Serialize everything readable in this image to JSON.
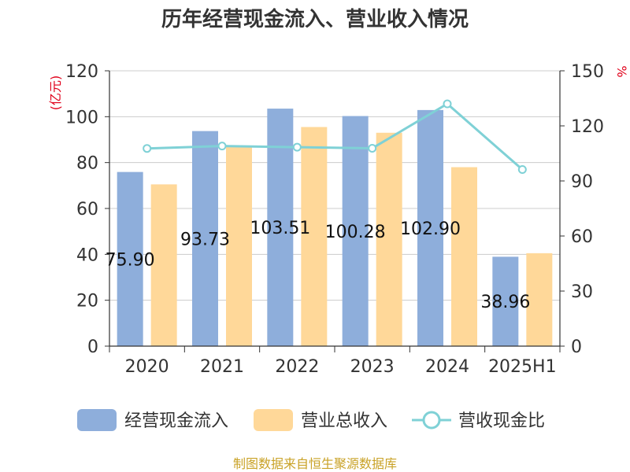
{
  "chart_data": {
    "type": "bar",
    "title": "历年经营现金流入、营业收入情况",
    "categories": [
      "2020",
      "2021",
      "2022",
      "2023",
      "2024",
      "2025H1"
    ],
    "series": [
      {
        "name": "经营现金流入",
        "kind": "bar",
        "axis": "left",
        "color": "#8eaedb",
        "values": [
          75.9,
          93.73,
          103.51,
          100.28,
          102.9,
          38.96
        ],
        "labels": [
          "75.90",
          "93.73",
          "103.51",
          "100.28",
          "102.90",
          "38.96"
        ]
      },
      {
        "name": "营业总收入",
        "kind": "bar",
        "axis": "left",
        "color": "#ffd899",
        "values": [
          70.5,
          87.0,
          95.5,
          93.0,
          78.0,
          40.5
        ]
      },
      {
        "name": "营收现金比",
        "kind": "line",
        "axis": "right",
        "color": "#7fd1d6",
        "values": [
          107.7,
          109.0,
          108.4,
          107.8,
          132.0,
          96.2
        ]
      }
    ],
    "left_axis": {
      "unit": "(亿元)",
      "ticks": [
        "0",
        "20",
        "40",
        "60",
        "80",
        "100",
        "120"
      ],
      "ylim": [
        0,
        120
      ]
    },
    "right_axis": {
      "unit": "%",
      "ticks": [
        "0",
        "30",
        "60",
        "90",
        "120",
        "150"
      ],
      "ylim": [
        0,
        150
      ]
    },
    "grid": true,
    "legend_position": "bottom"
  },
  "source": "制图数据来自恒生聚源数据库"
}
